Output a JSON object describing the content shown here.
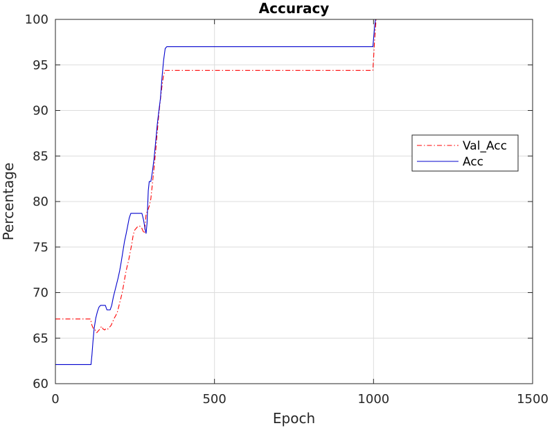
{
  "chart_data": {
    "type": "line",
    "title": "Accuracy",
    "xlabel": "Epoch",
    "ylabel": "Percentage",
    "xlim": [
      0,
      1500
    ],
    "ylim": [
      60,
      100
    ],
    "xticks": [
      0,
      500,
      1000,
      1500
    ],
    "yticks": [
      60,
      65,
      70,
      75,
      80,
      85,
      90,
      95,
      100
    ],
    "grid": true,
    "legend_position": "right",
    "series": [
      {
        "name": "Val_Acc",
        "color": "#ff0000",
        "style": "dash-dot",
        "x": [
          0,
          110,
          115,
          120,
          125,
          130,
          135,
          140,
          145,
          150,
          155,
          160,
          165,
          170,
          175,
          180,
          185,
          190,
          195,
          200,
          205,
          210,
          215,
          220,
          225,
          230,
          235,
          240,
          245,
          250,
          255,
          260,
          265,
          270,
          275,
          280,
          285,
          290,
          295,
          300,
          305,
          310,
          315,
          320,
          325,
          330,
          335,
          340,
          345,
          350,
          360,
          998,
          1003,
          1008,
          1500
        ],
        "y": [
          67.1,
          67.1,
          66.4,
          66.0,
          65.9,
          65.6,
          65.8,
          66.0,
          66.3,
          66.0,
          65.9,
          66.1,
          66.0,
          66.2,
          66.4,
          66.8,
          67.2,
          67.5,
          67.9,
          68.6,
          69.3,
          70.0,
          71.0,
          72.0,
          72.8,
          73.5,
          74.4,
          75.3,
          76.4,
          76.9,
          77.1,
          77.3,
          77.3,
          77.2,
          76.8,
          76.5,
          78.6,
          79.0,
          79.5,
          80.3,
          82.0,
          83.7,
          85.5,
          87.6,
          89.6,
          91.2,
          92.7,
          93.9,
          94.4,
          94.4,
          94.4,
          94.4,
          97.5,
          100,
          100
        ]
      },
      {
        "name": "Acc",
        "color": "#0000cd",
        "style": "solid",
        "x": [
          0,
          112,
          115,
          118,
          122,
          127,
          132,
          137,
          142,
          147,
          152,
          157,
          162,
          167,
          172,
          177,
          182,
          187,
          192,
          197,
          202,
          207,
          212,
          217,
          222,
          227,
          232,
          237,
          242,
          247,
          252,
          257,
          262,
          267,
          272,
          277,
          282,
          285,
          288,
          290,
          292,
          295,
          300,
          305,
          310,
          315,
          320,
          325,
          330,
          335,
          340,
          345,
          350,
          355,
          998,
          1003,
          1006,
          1500
        ],
        "y": [
          62.1,
          62.1,
          63.2,
          64.6,
          66.1,
          67.2,
          67.9,
          68.4,
          68.6,
          68.6,
          68.6,
          68.6,
          68.1,
          68.1,
          68.1,
          68.6,
          69.5,
          70.2,
          70.9,
          71.6,
          72.4,
          73.4,
          74.5,
          75.6,
          76.4,
          77.3,
          78.2,
          78.7,
          78.7,
          78.7,
          78.7,
          78.7,
          78.7,
          78.7,
          78.7,
          78.0,
          77.0,
          76.5,
          77.6,
          79.5,
          81.2,
          82.2,
          82.2,
          83.3,
          84.7,
          86.5,
          88.4,
          89.9,
          91.3,
          93.6,
          95.5,
          96.8,
          97.0,
          97.0,
          97.0,
          99.0,
          100,
          100
        ]
      }
    ]
  }
}
